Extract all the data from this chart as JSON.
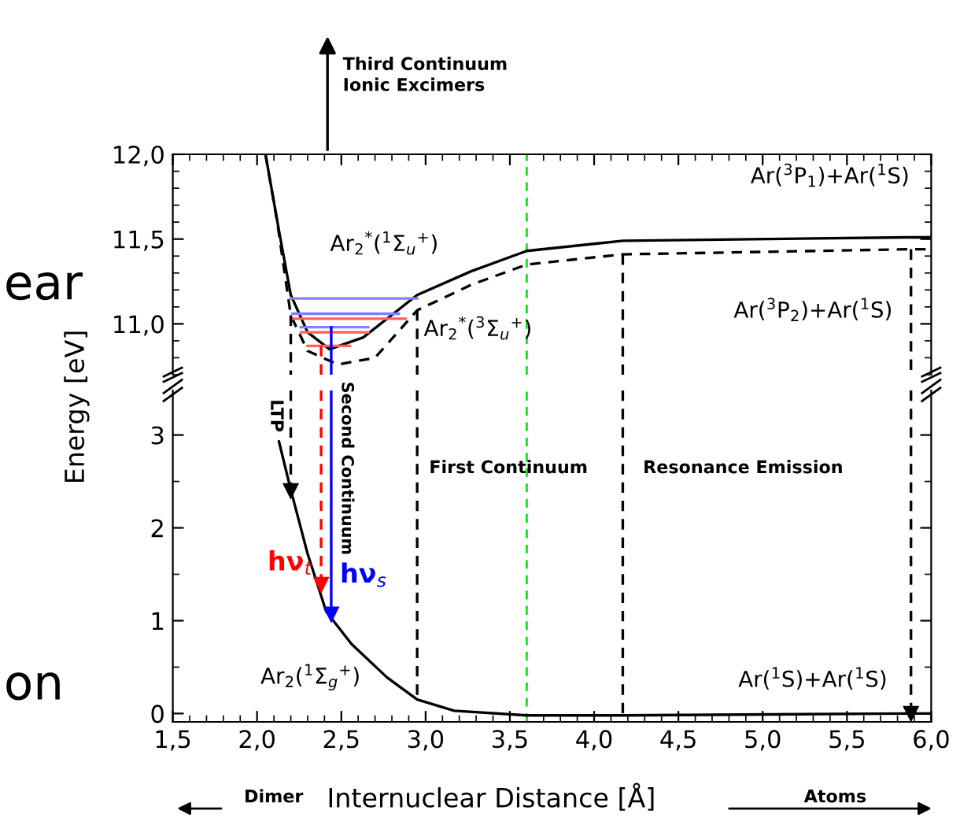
{
  "chart_data": [
    {
      "type": "line",
      "tick_labels": "y",
      "xlim": [
        1.5,
        6.0
      ],
      "ylim": [
        10.7,
        12.0
      ],
      "xticks": [
        {
          "value": 1.5,
          "label": null
        },
        {
          "value": 2.0,
          "label": null
        },
        {
          "value": 2.5,
          "label": null
        },
        {
          "value": 3.0,
          "label": null
        },
        {
          "value": 3.5,
          "label": null
        },
        {
          "value": 4.0,
          "label": null
        },
        {
          "value": 4.5,
          "label": null
        },
        {
          "value": 5.0,
          "label": null
        },
        {
          "value": 5.5,
          "label": null
        },
        {
          "value": 6.0,
          "label": null
        }
      ],
      "yticks": [
        {
          "value": 11.0,
          "label": "11,0"
        },
        {
          "value": 11.5,
          "label": "11,5"
        },
        {
          "value": 12.0,
          "label": "12,0"
        }
      ],
      "series": [
        {
          "name": "Ar$_{2}$$^{*}$($^{1}$Σ$_{u}$$^{+}$)",
          "color": "#000000",
          "line_style": "solid",
          "x": [
            2.05,
            2.13,
            2.2,
            2.3,
            2.43,
            2.63,
            2.95,
            3.27,
            3.6,
            4.17,
            5.86,
            6.0
          ],
          "values": [
            12.0,
            11.55,
            11.17,
            10.95,
            10.85,
            10.92,
            11.17,
            11.31,
            11.43,
            11.49,
            11.51,
            11.51
          ]
        },
        {
          "name": "Ar$_{2}$$^{*}$($^{3}$Σ$_{u}$$^{+}$)",
          "color": "#000000",
          "line_style": "dashed",
          "x": [
            2.05,
            2.12,
            2.2,
            2.3,
            2.48,
            2.7,
            2.95,
            3.27,
            3.6,
            4.17,
            5.88,
            6.0
          ],
          "values": [
            12.0,
            11.6,
            11.05,
            10.84,
            10.76,
            10.8,
            11.08,
            11.23,
            11.35,
            11.41,
            11.44,
            11.44
          ]
        },
        {
          "color": "#8080ff",
          "line_style": "solid",
          "x": [
            2.2,
            2.95
          ],
          "values": [
            11.15,
            11.15
          ]
        },
        {
          "color": "#8080ff",
          "line_style": "solid",
          "x": [
            2.21,
            2.84
          ],
          "values": [
            11.06,
            11.06
          ]
        },
        {
          "color": "#8080ff",
          "line_style": "solid",
          "x": [
            2.26,
            2.66
          ],
          "values": [
            10.98,
            10.98
          ]
        },
        {
          "color": "#ff6060",
          "line_style": "solid",
          "x": [
            2.21,
            2.88
          ],
          "values": [
            11.03,
            11.03
          ]
        },
        {
          "color": "#ff6060",
          "line_style": "solid",
          "x": [
            2.26,
            2.66
          ],
          "values": [
            10.95,
            10.95
          ]
        },
        {
          "color": "#ff6060",
          "line_style": "solid",
          "x": [
            2.3,
            2.55
          ],
          "values": [
            10.87,
            10.87
          ]
        },
        {
          "color": "#000000",
          "line_style": "dashed",
          "x": [
            2.2,
            2.2
          ],
          "values": [
            11.05,
            10.7
          ]
        },
        {
          "color": "#ff0000",
          "line_style": "dashed",
          "x": [
            2.38,
            2.38
          ],
          "values": [
            10.87,
            10.7
          ]
        },
        {
          "color": "#0000ff",
          "line_style": "solid",
          "x": [
            2.44,
            2.44
          ],
          "values": [
            10.98,
            10.7
          ]
        },
        {
          "color": "#000000",
          "line_style": "dashed",
          "x": [
            2.95,
            2.95
          ],
          "values": [
            11.08,
            10.7
          ]
        },
        {
          "color": "#000000",
          "line_style": "dashed",
          "x": [
            4.17,
            4.17
          ],
          "values": [
            11.41,
            10.7
          ]
        },
        {
          "color": "#000000",
          "line_style": "dashed",
          "x": [
            5.88,
            5.88
          ],
          "values": [
            11.44,
            10.7
          ]
        }
      ],
      "ref_lines": [
        {
          "axis": "x",
          "value": 3.6,
          "color": "#00ee00",
          "line_style": "dashed"
        }
      ],
      "annotations": [
        "ear",
        "Third Continuum\nIonic Excimers",
        {
          "text": "Ar($^{3}$P$_{1}$)+Ar($^{1}$S)",
          "x": 5.4,
          "y": 11.51
        },
        {
          "text": "Ar($^{3}$P$_{2}$)+Ar($^{1}$S)",
          "x": 5.3,
          "y": 11.44
        }
      ]
    },
    {
      "type": "line",
      "xlabel": "Internuclear Distance [Å]",
      "ylabel": "Energy [eV]",
      "xlim": [
        1.5,
        6.0
      ],
      "ylim": [
        -0.09,
        3.48
      ],
      "xticks": [
        {
          "value": 1.5,
          "label": "1,5"
        },
        {
          "value": 2.0,
          "label": "2,0"
        },
        {
          "value": 2.5,
          "label": "2,5"
        },
        {
          "value": 3.0,
          "label": "3,0"
        },
        {
          "value": 3.5,
          "label": "3,5"
        },
        {
          "value": 4.0,
          "label": "4,0"
        },
        {
          "value": 4.5,
          "label": "4,5"
        },
        {
          "value": 5.0,
          "label": "5,0"
        },
        {
          "value": 5.5,
          "label": "5,5"
        },
        {
          "value": 6.0,
          "label": "6,0"
        }
      ],
      "yticks": [
        0,
        1,
        2,
        3
      ],
      "series": [
        {
          "name": "Ar$_{2}$($^{1}$Σ$_{g}$$^{+}$)",
          "color": "#000000",
          "line_style": "solid",
          "x": [
            2.13,
            2.2,
            2.3,
            2.41,
            2.56,
            2.77,
            2.95,
            3.17,
            3.6,
            4.17,
            5.86,
            6.0
          ],
          "values": [
            2.93,
            2.41,
            1.72,
            1.1,
            0.75,
            0.39,
            0.15,
            0.03,
            -0.02,
            -0.02,
            0.0,
            0.0
          ]
        },
        {
          "name": "LTP",
          "color": "#000000",
          "line_style": "dashed",
          "marker": "triangle",
          "x": [
            2.2,
            2.2
          ],
          "values": [
            3.48,
            2.4
          ]
        },
        {
          "name": "hν$_{t}$",
          "color": "#ff0000",
          "line_style": "dashed",
          "marker": "triangle",
          "x": [
            2.38,
            2.38
          ],
          "values": [
            3.48,
            1.39
          ]
        },
        {
          "name": "hν$_{s}$",
          "color": "#0000ff",
          "line_style": "solid",
          "marker": "triangle",
          "x": [
            2.44,
            2.44
          ],
          "values": [
            3.48,
            1.07
          ]
        },
        {
          "color": "#000000",
          "line_style": "dashed",
          "x": [
            2.95,
            2.95
          ],
          "values": [
            3.48,
            0.15
          ]
        },
        {
          "color": "#000000",
          "line_style": "dashed",
          "x": [
            4.17,
            4.17
          ],
          "values": [
            3.48,
            -0.02
          ]
        },
        {
          "color": "#000000",
          "line_style": "dashed",
          "marker": "triangle",
          "x": [
            5.88,
            5.88
          ],
          "values": [
            3.48,
            0.0
          ]
        }
      ],
      "ref_lines": [
        {
          "axis": "x",
          "value": 3.6,
          "color": "#00ee00",
          "line_style": "dashed"
        }
      ],
      "annotations": [
        "on",
        "Second Continuum",
        "First Continuum",
        "Resonance Emission",
        "Ar($^{1}$S)+Ar($^{1}$S)",
        "Dimer",
        "Atoms"
      ]
    }
  ]
}
